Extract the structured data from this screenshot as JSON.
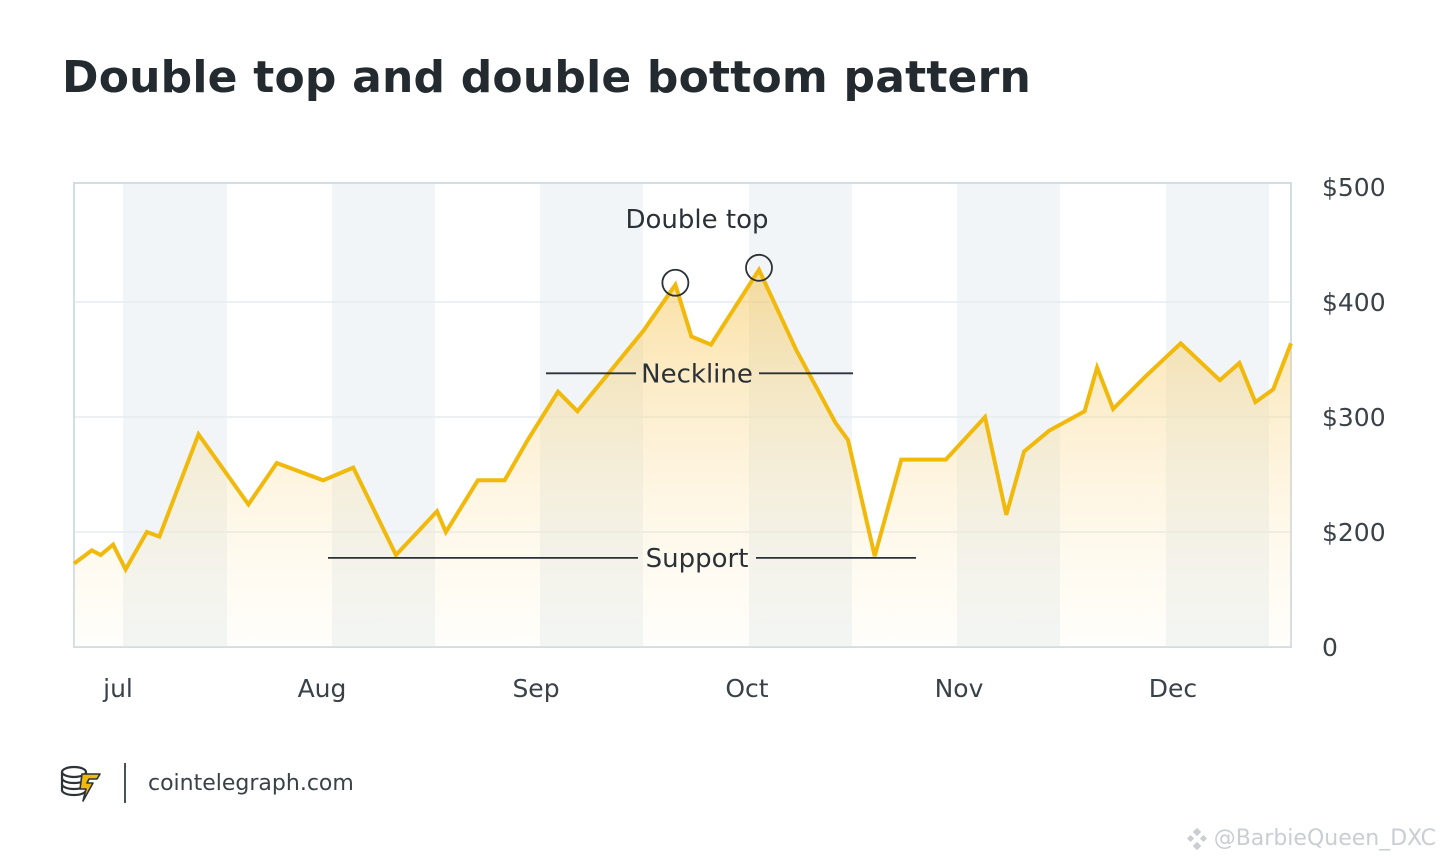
{
  "title": "Double top and double bottom pattern",
  "chart_data": {
    "type": "area",
    "title": "Double top and double bottom pattern",
    "xlabel": "",
    "ylabel": "",
    "x_tick_labels": [
      "jul",
      "Aug",
      "Sep",
      "Oct",
      "Nov",
      "Dec"
    ],
    "y_tick_labels": [
      "0",
      "$200",
      "$300",
      "$400",
      "$500"
    ],
    "ylim": [
      0,
      500
    ],
    "grid": true,
    "shaded_bands": "alternating vertical bands",
    "series": [
      {
        "color": "#f0b90b",
        "points": [
          [
            0.0,
            145
          ],
          [
            0.5,
            168
          ],
          [
            0.75,
            160
          ],
          [
            1.1,
            178
          ],
          [
            1.45,
            135
          ],
          [
            2.05,
            200
          ],
          [
            2.4,
            192
          ],
          [
            3.5,
            285
          ],
          [
            4.9,
            224
          ],
          [
            5.7,
            260
          ],
          [
            7.0,
            245
          ],
          [
            7.85,
            256
          ],
          [
            9.05,
            160
          ],
          [
            10.2,
            218
          ],
          [
            10.45,
            200
          ],
          [
            11.35,
            245
          ],
          [
            12.1,
            245
          ],
          [
            12.75,
            280
          ],
          [
            13.6,
            322
          ],
          [
            14.15,
            305
          ],
          [
            16.0,
            375
          ],
          [
            16.9,
            415
          ],
          [
            17.35,
            370
          ],
          [
            17.9,
            363
          ],
          [
            19.25,
            428
          ],
          [
            20.3,
            358
          ],
          [
            21.4,
            295
          ],
          [
            21.75,
            280
          ],
          [
            22.5,
            158
          ],
          [
            23.25,
            263
          ],
          [
            24.5,
            263
          ],
          [
            25.6,
            300
          ],
          [
            26.2,
            215
          ],
          [
            26.7,
            270
          ],
          [
            27.4,
            288
          ],
          [
            28.4,
            305
          ],
          [
            28.75,
            343
          ],
          [
            29.2,
            307
          ],
          [
            30.1,
            335
          ],
          [
            31.1,
            364
          ],
          [
            32.2,
            332
          ],
          [
            32.75,
            347
          ],
          [
            33.2,
            313
          ],
          [
            33.7,
            324
          ],
          [
            34.2,
            364
          ]
        ]
      }
    ],
    "annotations": {
      "double_top_label": "Double top",
      "neckline_label": "Neckline",
      "support_label": "Support",
      "neckline_value": 338,
      "support_value": 155,
      "marked_peaks_x": [
        16.9,
        19.25
      ]
    }
  },
  "footer": {
    "logo_icon": "cointelegraph-logo-icon",
    "site": "cointelegraph.com"
  },
  "watermark": {
    "icon": "binance-square-icon",
    "text": "@BarbieQueen_DXC"
  }
}
